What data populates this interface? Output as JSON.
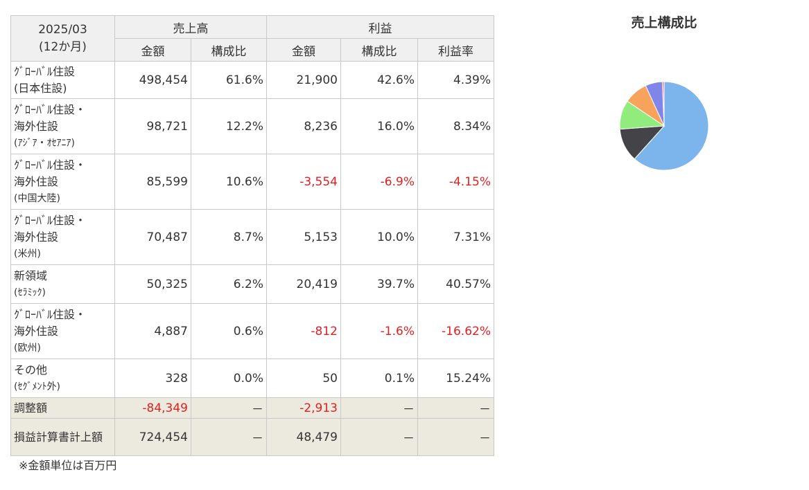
{
  "table": {
    "period": "2025/03",
    "period_sub": "(12か月)",
    "group_sales": "売上高",
    "group_profit": "利益",
    "col_amount": "金額",
    "col_ratio": "構成比",
    "col_margin": "利益率",
    "rows": [
      {
        "seg": [
          "ｸﾞﾛｰﾊﾞﾙ住設",
          "(日本住設)"
        ],
        "sales": "498,454",
        "sales_ratio": "61.6%",
        "profit": "21,900",
        "profit_ratio": "42.6%",
        "margin": "4.39%",
        "neg": false
      },
      {
        "seg": [
          "ｸﾞﾛｰﾊﾞﾙ住設・",
          "海外住設",
          "(ｱｼﾞｱ・ｵｾｱﾆｱ)"
        ],
        "sales": "98,721",
        "sales_ratio": "12.2%",
        "profit": "8,236",
        "profit_ratio": "16.0%",
        "margin": "8.34%",
        "neg": false
      },
      {
        "seg": [
          "ｸﾞﾛｰﾊﾞﾙ住設・",
          "海外住設",
          "(中国大陸)"
        ],
        "sales": "85,599",
        "sales_ratio": "10.6%",
        "profit": "-3,554",
        "profit_ratio": "-6.9%",
        "margin": "-4.15%",
        "neg": true
      },
      {
        "seg": [
          "ｸﾞﾛｰﾊﾞﾙ住設・",
          "海外住設",
          "(米州)"
        ],
        "sales": "70,487",
        "sales_ratio": "8.7%",
        "profit": "5,153",
        "profit_ratio": "10.0%",
        "margin": "7.31%",
        "neg": false
      },
      {
        "seg": [
          "新領域",
          "(ｾﾗﾐｯｸ)"
        ],
        "sales": "50,325",
        "sales_ratio": "6.2%",
        "profit": "20,419",
        "profit_ratio": "39.7%",
        "margin": "40.57%",
        "neg": false
      },
      {
        "seg": [
          "ｸﾞﾛｰﾊﾞﾙ住設・",
          "海外住設",
          "(欧州)"
        ],
        "sales": "4,887",
        "sales_ratio": "0.6%",
        "profit": "-812",
        "profit_ratio": "-1.6%",
        "margin": "-16.62%",
        "neg": true
      },
      {
        "seg": [
          "その他",
          "(ｾｸﾞﾒﾝﾄ外)"
        ],
        "sales": "328",
        "sales_ratio": "0.0%",
        "profit": "50",
        "profit_ratio": "0.1%",
        "margin": "15.24%",
        "neg": false
      }
    ],
    "adjust": {
      "label": "調整額",
      "sales": "-84,349",
      "sales_ratio": "－",
      "profit": "-2,913",
      "profit_ratio": "－",
      "margin": "－"
    },
    "total": {
      "label": "損益計算書計上額",
      "sales": "724,454",
      "sales_ratio": "－",
      "profit": "48,479",
      "profit_ratio": "－",
      "margin": "－"
    }
  },
  "note": "※金額単位は百万円",
  "chart_data": {
    "type": "pie",
    "title": "売上構成比",
    "slices": [
      {
        "value": 61.6,
        "color": "#7cb5ec"
      },
      {
        "value": 12.2,
        "color": "#434348"
      },
      {
        "value": 10.6,
        "color": "#90ed7d"
      },
      {
        "value": 8.7,
        "color": "#f7a35c"
      },
      {
        "value": 6.2,
        "color": "#8085e9"
      },
      {
        "value": 0.6,
        "color": "#f15c80"
      },
      {
        "value": 0.04,
        "color": "#e4d354"
      }
    ]
  }
}
